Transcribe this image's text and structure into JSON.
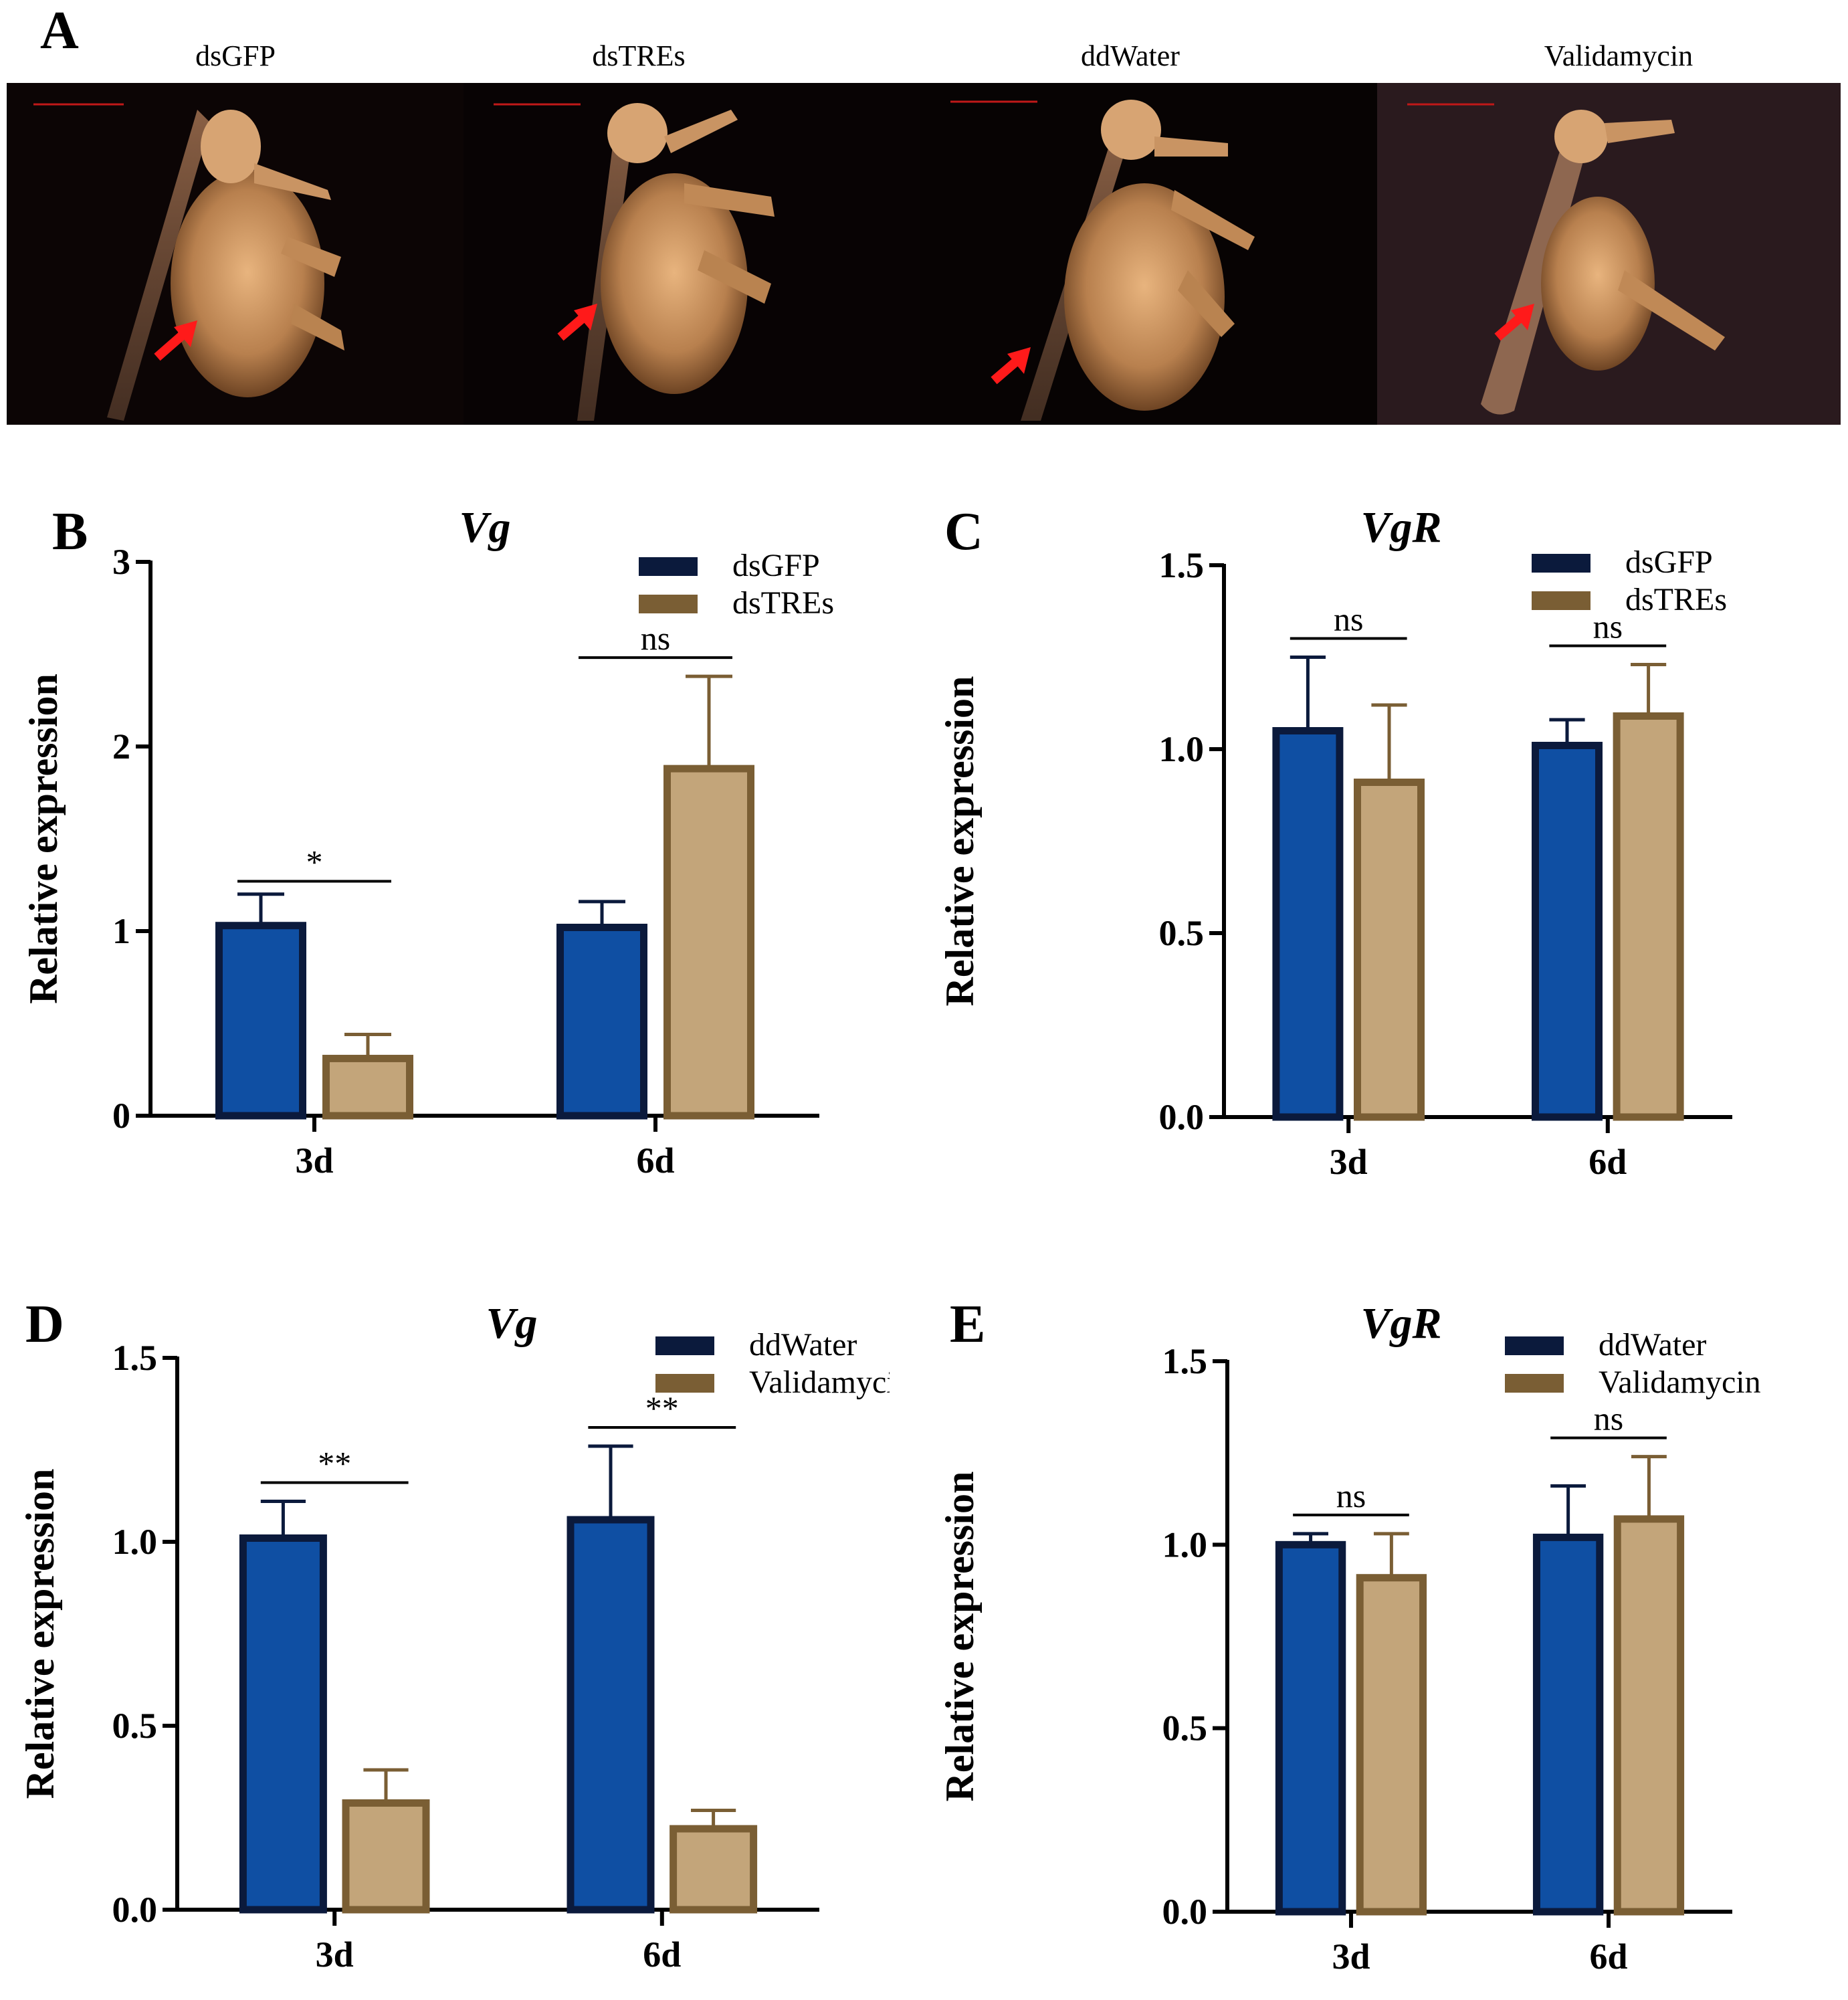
{
  "panels": {
    "A": "A",
    "B": "B",
    "C": "C",
    "D": "D",
    "E": "E"
  },
  "photo_labels": [
    "dsGFP",
    "dsTREs",
    "ddWater",
    "Validamycin"
  ],
  "colors": {
    "blue_bar": "#0f4fa3",
    "blue_edge": "#0b1a3c",
    "tan_bar": "#c3a57a",
    "tan_edge": "#7a5e34",
    "arrow": "#ff1a1a"
  },
  "chart_data": [
    {
      "id": "B",
      "type": "bar",
      "title": "Vg",
      "xlabel": "",
      "ylabel": "Relative expression",
      "categories": [
        "3d",
        "6d"
      ],
      "ylim": [
        0,
        3
      ],
      "yticks": [
        "0",
        "1",
        "2",
        "3"
      ],
      "series": [
        {
          "name": "dsGFP",
          "values": [
            1.03,
            1.02
          ],
          "errors": [
            0.17,
            0.14
          ]
        },
        {
          "name": "dsTREs",
          "values": [
            0.31,
            1.88
          ],
          "errors": [
            0.13,
            0.5
          ]
        }
      ],
      "annotations": [
        "*",
        "ns"
      ],
      "legend": "top-right"
    },
    {
      "id": "C",
      "type": "bar",
      "title": "VgR",
      "xlabel": "",
      "ylabel": "Relative expression",
      "categories": [
        "3d",
        "6d"
      ],
      "ylim": [
        0,
        1.5
      ],
      "yticks": [
        "0.0",
        "0.5",
        "1.0",
        "1.5"
      ],
      "series": [
        {
          "name": "dsGFP",
          "values": [
            1.05,
            1.01
          ],
          "errors": [
            0.2,
            0.07
          ]
        },
        {
          "name": "dsTREs",
          "values": [
            0.91,
            1.09
          ],
          "errors": [
            0.21,
            0.14
          ]
        }
      ],
      "annotations": [
        "ns",
        "ns"
      ],
      "legend": "top-right"
    },
    {
      "id": "D",
      "type": "bar",
      "title": "Vg",
      "xlabel": "",
      "ylabel": "Relative expression",
      "categories": [
        "3d",
        "6d"
      ],
      "ylim": [
        0,
        1.5
      ],
      "yticks": [
        "0.0",
        "0.5",
        "1.0",
        "1.5"
      ],
      "series": [
        {
          "name": "ddWater",
          "values": [
            1.01,
            1.06
          ],
          "errors": [
            0.1,
            0.2
          ]
        },
        {
          "name": "Validamycin",
          "values": [
            0.29,
            0.22
          ],
          "errors": [
            0.09,
            0.05
          ]
        }
      ],
      "annotations": [
        "**",
        "**"
      ],
      "legend": "top-right"
    },
    {
      "id": "E",
      "type": "bar",
      "title": "VgR",
      "xlabel": "",
      "ylabel": "Relative expression",
      "categories": [
        "3d",
        "6d"
      ],
      "ylim": [
        0,
        1.5
      ],
      "yticks": [
        "0.0",
        "0.5",
        "1.0",
        "1.5"
      ],
      "series": [
        {
          "name": "ddWater",
          "values": [
            1.0,
            1.02
          ],
          "errors": [
            0.03,
            0.14
          ]
        },
        {
          "name": "Validamycin",
          "values": [
            0.91,
            1.07
          ],
          "errors": [
            0.12,
            0.17
          ]
        }
      ],
      "annotations": [
        "ns",
        "ns"
      ],
      "legend": "top-right"
    }
  ]
}
